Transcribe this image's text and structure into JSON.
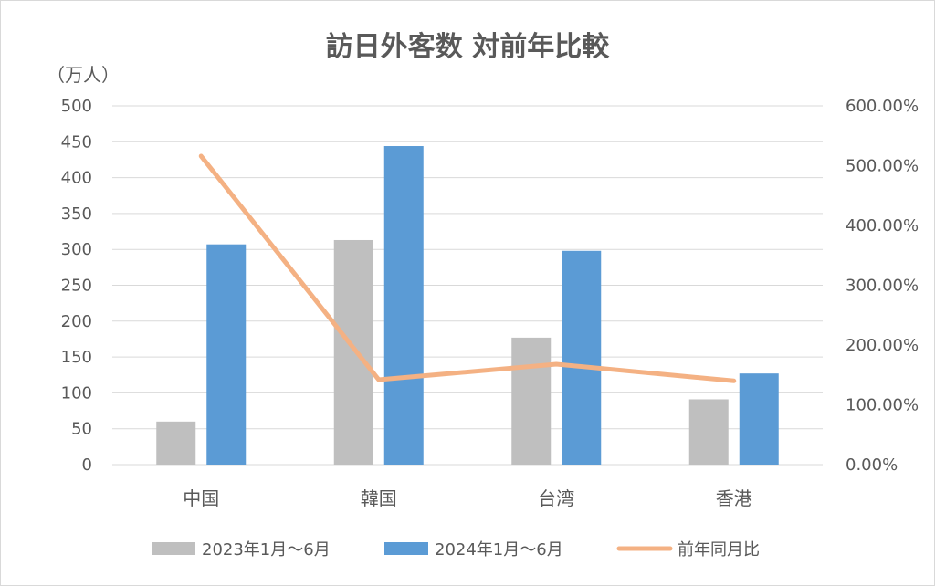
{
  "chart_data": {
    "type": "bar",
    "title": "訪日外客数 対前年比較",
    "ylabel": "（万人）",
    "categories": [
      "中国",
      "韓国",
      "台湾",
      "香港"
    ],
    "ylim": [
      0,
      500
    ],
    "y_ticks": [
      "0",
      "50",
      "100",
      "150",
      "200",
      "250",
      "300",
      "350",
      "400",
      "450",
      "500"
    ],
    "y2lim": [
      0,
      600
    ],
    "y2_ticks": [
      "0.00%",
      "100.00%",
      "200.00%",
      "300.00%",
      "400.00%",
      "500.00%",
      "600.00%"
    ],
    "grid": true,
    "legend_position": "bottom",
    "series": [
      {
        "name": "2023年1月～6月",
        "kind": "bar",
        "axis": "left",
        "color": "#bfbfbf",
        "values": [
          60,
          313,
          177,
          91
        ]
      },
      {
        "name": "2024年1月～6月",
        "kind": "bar",
        "axis": "left",
        "color": "#5b9bd5",
        "values": [
          307,
          444,
          298,
          127
        ]
      },
      {
        "name": "前年同月比",
        "kind": "line",
        "axis": "right",
        "color": "#f4b183",
        "values": [
          516,
          142,
          168,
          140
        ]
      }
    ]
  }
}
